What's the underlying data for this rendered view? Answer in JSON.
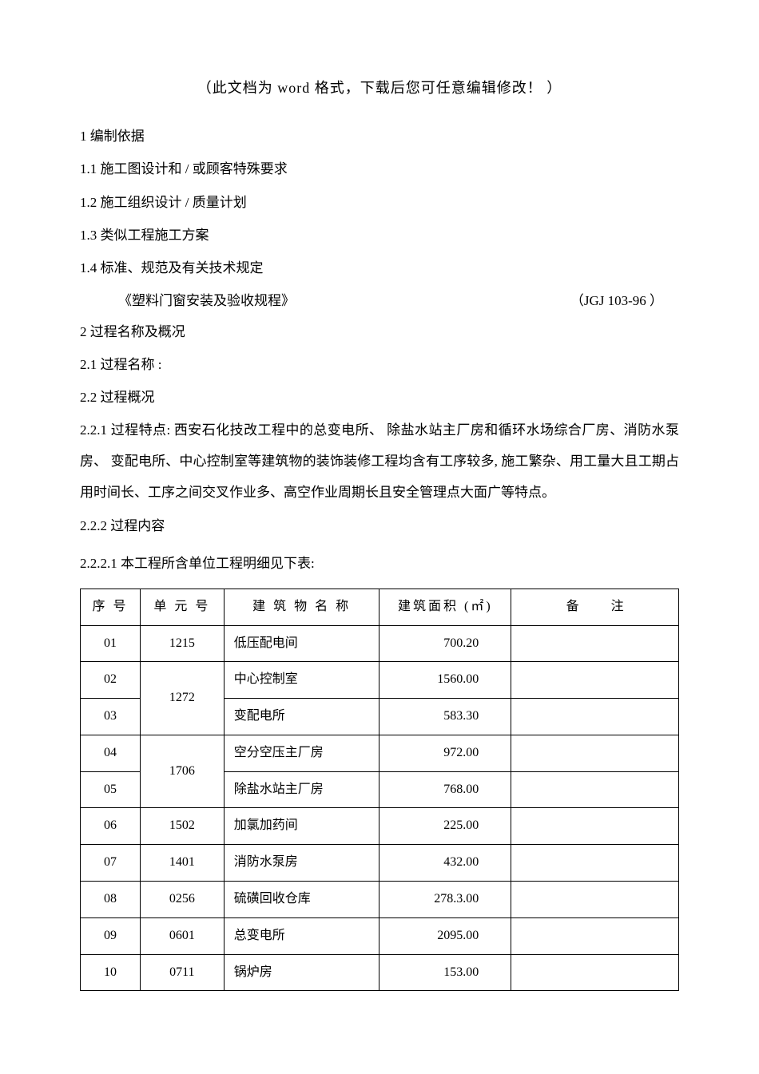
{
  "header_note": "（此文档为 word 格式，下载后您可任意编辑修改！    ）",
  "sections": {
    "s1": "1 编制依据",
    "s1_1": "1.1  施工图设计和 / 或顾客特殊要求",
    "s1_2": "1.2  施工组织设计 / 质量计划",
    "s1_3": "1.3  类似工程施工方案",
    "s1_4": "1.4 标准、规范及有关技术规定",
    "s1_4_ref_title": "《塑料门窗安装及验收规程》",
    "s1_4_ref_code": "（JGJ 103-96 ）",
    "s2": "2 过程名称及概况",
    "s2_1": "2.1  过程名称 :",
    "s2_2": "2.2  过程概况",
    "s2_2_1": "2.2.1  过程特点:   西安石化技改工程中的总变电所、   除盐水站主厂房和循环水场综合厂房、消防水泵房、 变配电所、中心控制室等建筑物的装饰装修工程均含有工序较多,      施工繁杂、用工量大且工期占用时间长、工序之间交叉作业多、高空作业周期长且安全管理点大面广等特点。",
    "s2_2_2": "2.2.2   过程内容",
    "s2_2_2_1": "2.2.2.1   本工程所含单位工程明细见下表:"
  },
  "table": {
    "headers": {
      "seq": "序 号",
      "unit": "单 元 号",
      "name": "建 筑 物 名 称",
      "area": "建筑面积 (㎡)",
      "note_left": "备",
      "note_right": "注"
    },
    "rows": [
      {
        "seq": "01",
        "unit": "1215",
        "name": "低压配电间",
        "area": "700.20",
        "note": "",
        "rowspan": 1
      },
      {
        "seq": "02",
        "unit": "1272",
        "name": "中心控制室",
        "area": "1560.00",
        "note": "",
        "rowspan": 2
      },
      {
        "seq": "03",
        "unit": "",
        "name": "变配电所",
        "area": "583.30",
        "note": "",
        "rowspan": 0
      },
      {
        "seq": "04",
        "unit": "1706",
        "name": "空分空压主厂房",
        "area": "972.00",
        "note": "",
        "rowspan": 2
      },
      {
        "seq": "05",
        "unit": "",
        "name": "除盐水站主厂房",
        "area": "768.00",
        "note": "",
        "rowspan": 0
      },
      {
        "seq": "06",
        "unit": "1502",
        "name": "加氯加药间",
        "area": "225.00",
        "note": "",
        "rowspan": 1
      },
      {
        "seq": "07",
        "unit": "1401",
        "name": "消防水泵房",
        "area": "432.00",
        "note": "",
        "rowspan": 1
      },
      {
        "seq": "08",
        "unit": "0256",
        "name": "硫磺回收仓库",
        "area": "278.3.00",
        "note": "",
        "rowspan": 1
      },
      {
        "seq": "09",
        "unit": "0601",
        "name": "总变电所",
        "area": "2095.00",
        "note": "",
        "rowspan": 1
      },
      {
        "seq": "10",
        "unit": "0711",
        "name": "锅炉房",
        "area": "153.00",
        "note": "",
        "rowspan": 1
      }
    ]
  }
}
